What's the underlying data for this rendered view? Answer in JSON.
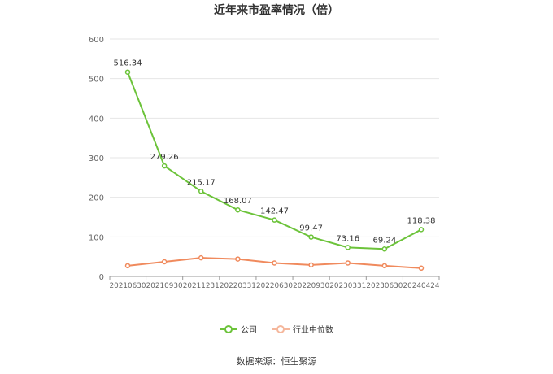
{
  "chart_data": {
    "type": "line",
    "title": "近年来市盈率情况（倍）",
    "xlabel": "",
    "ylabel": "",
    "ylim": [
      0,
      600
    ],
    "yticks": [
      0,
      100,
      200,
      300,
      400,
      500,
      600
    ],
    "grid": true,
    "legend_position": "bottom",
    "categories": [
      "20210630",
      "20210930",
      "20211231",
      "20220331",
      "20220630",
      "20220930",
      "20230331",
      "20230630",
      "20240424"
    ],
    "series": [
      {
        "name": "公司",
        "color": "#6cc33a",
        "values": [
          516.34,
          279.26,
          215.17,
          168.07,
          142.47,
          99.47,
          73.16,
          69.24,
          118.38
        ],
        "labels": [
          "516.34",
          "279.26",
          "215.17",
          "168.07",
          "142.47",
          "99.47",
          "73.16",
          "69.24",
          "118.38"
        ]
      },
      {
        "name": "行业中位数",
        "color": "#f08a5d",
        "values": [
          27,
          37,
          47,
          44,
          34,
          29,
          34,
          27,
          21
        ]
      }
    ]
  },
  "source_text": "数据来源：恒生聚源"
}
